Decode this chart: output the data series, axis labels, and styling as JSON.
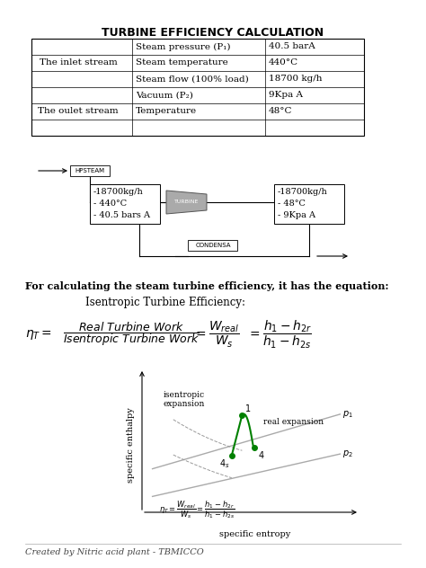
{
  "title": "TURBINE EFFICIENCY CALCULATION",
  "table_rows": [
    [
      "The inlet stream",
      "Steam pressure (P₁)",
      "40.5 barA"
    ],
    [
      "",
      "Steam temperature",
      "440°C"
    ],
    [
      "",
      "Steam flow (100% load)",
      "18700 kg/h"
    ],
    [
      "The oulet stream",
      "Vacuum (P₂)",
      "9Kpa A"
    ],
    [
      "",
      "Temperature",
      "48°C"
    ],
    [
      "",
      "",
      ""
    ]
  ],
  "inlet_lines": [
    "-18700kg/h",
    "- 440°C",
    "- 40.5 bars A"
  ],
  "outlet_lines": [
    "-18700kg/h",
    "- 48°C",
    "- 9Kpa A"
  ],
  "label_hpsteam": "HPSTEAM",
  "label_turbine": "TURBINE",
  "label_condensa": "CONDENSA",
  "text_for_calc": "For calculating the steam turbine efficiency, it has the equation:",
  "text_isentropic_label": "Isentropic Turbine Efficiency:",
  "graph_xlabel": "specific entropy",
  "graph_ylabel": "specific enthalpy",
  "graph_label_isentropic": "isentropic\nexpansion",
  "graph_label_real": "real expansion",
  "footer": "Created by Nitric acid plant - TBMICCO",
  "bg_color": "#ffffff",
  "text_color": "#000000"
}
